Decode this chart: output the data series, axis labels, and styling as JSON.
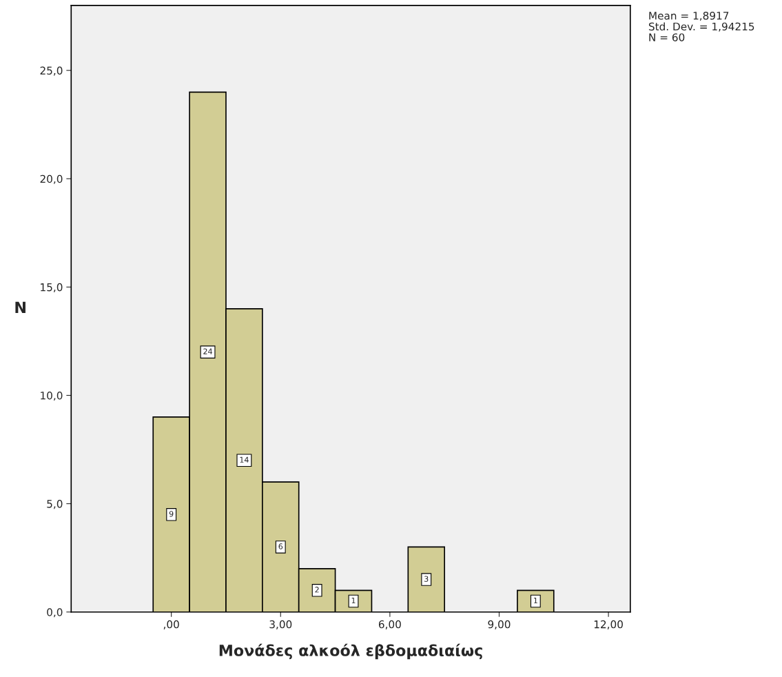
{
  "chart_data": {
    "type": "histogram",
    "xlabel": "Μονάδες αλκοόλ εβδομαδιαίως",
    "ylabel": "N",
    "bins": [
      -0.5,
      0.5,
      1.5,
      2.5,
      3.5,
      4.5,
      5.5,
      6.5,
      7.5,
      8.5,
      9.5,
      10.5
    ],
    "values": [
      9,
      24,
      14,
      6,
      2,
      1,
      0,
      3,
      0,
      0,
      1
    ],
    "value_labels": [
      "9",
      "24",
      "14",
      "6",
      "2",
      "1",
      null,
      "3",
      null,
      null,
      "1"
    ],
    "color": "#d2cd94",
    "xlim": [
      -2.75,
      12.6
    ],
    "ylim": [
      0,
      28
    ],
    "xticks": [
      {
        "value": 0,
        "label": ",00"
      },
      {
        "value": 3,
        "label": "3,00"
      },
      {
        "value": 6,
        "label": "6,00"
      },
      {
        "value": 9,
        "label": "9,00"
      },
      {
        "value": 12,
        "label": "12,00"
      }
    ],
    "yticks": [
      {
        "value": 0,
        "label": "0,0"
      },
      {
        "value": 5,
        "label": "5,0"
      },
      {
        "value": 10,
        "label": "10,0"
      },
      {
        "value": 15,
        "label": "15,0"
      },
      {
        "value": 20,
        "label": "20,0"
      },
      {
        "value": 25,
        "label": "25,0"
      }
    ],
    "grid": false,
    "annotations": [
      "Mean = 1,8917",
      "Std. Dev. = 1,94215",
      "N = 60"
    ]
  }
}
